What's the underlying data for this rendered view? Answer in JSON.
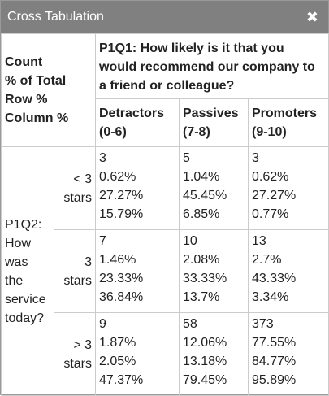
{
  "dialog": {
    "title": "Cross Tabulation",
    "close_glyph": "✖"
  },
  "legend": [
    "Count",
    "% of Total",
    "Row %",
    "Column %"
  ],
  "column_question": "P1Q1: How likely is it that you would recommend our company to a friend or colleague?",
  "columns": [
    {
      "line1": "Detractors",
      "line2": "(0-6)"
    },
    {
      "line1": "Passives",
      "line2": "(7-8)"
    },
    {
      "line1": "Promoters",
      "line2": "(9-10)"
    }
  ],
  "row_question": [
    "P1Q2:",
    "How",
    "was",
    "the",
    "service",
    "today?"
  ],
  "rows": [
    {
      "label1": "< 3",
      "label2": "stars",
      "cells": [
        [
          "3",
          "0.62%",
          "27.27%",
          "15.79%"
        ],
        [
          "5",
          "1.04%",
          "45.45%",
          "6.85%"
        ],
        [
          "3",
          "0.62%",
          "27.27%",
          "0.77%"
        ]
      ]
    },
    {
      "label1": "3",
      "label2": "stars",
      "cells": [
        [
          "7",
          "1.46%",
          "23.33%",
          "36.84%"
        ],
        [
          "10",
          "2.08%",
          "33.33%",
          "13.7%"
        ],
        [
          "13",
          "2.7%",
          "43.33%",
          "3.34%"
        ]
      ]
    },
    {
      "label1": "> 3",
      "label2": "stars",
      "cells": [
        [
          "9",
          "1.87%",
          "2.05%",
          "47.37%"
        ],
        [
          "58",
          "12.06%",
          "13.18%",
          "79.45%"
        ],
        [
          "373",
          "77.55%",
          "84.77%",
          "95.89%"
        ]
      ]
    }
  ]
}
